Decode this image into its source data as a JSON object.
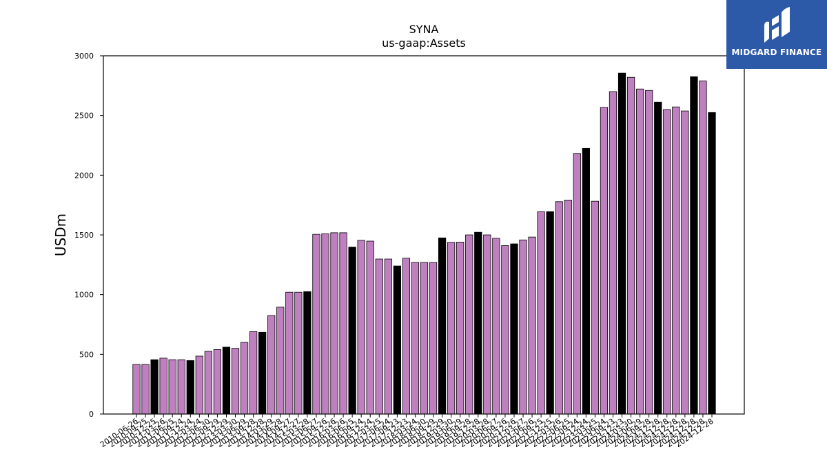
{
  "logo": {
    "text": "MIDGARD FINANCE",
    "background": "#2c5aa8"
  },
  "chart_data": {
    "type": "bar",
    "title": "SYNA",
    "subtitle": "us-gaap:Assets",
    "xlabel": "",
    "ylabel": "USDm",
    "ylim": [
      0,
      3000
    ],
    "yticks": [
      0,
      500,
      1000,
      1500,
      2000,
      2500,
      3000
    ],
    "grid": false,
    "colors": {
      "quarter": "#bf80bf",
      "fiscal_year_end": "#000000"
    },
    "categories": [
      "2010-06-26",
      "2010-09-25",
      "2010-12-25",
      "2011-03-26",
      "2011-06-25",
      "2011-09-24",
      "2011-12-24",
      "2012-03-24",
      "2012-06-30",
      "2012-09-29",
      "2012-12-29",
      "2013-03-30",
      "2013-06-29",
      "2013-09-28",
      "2013-12-28",
      "2014-03-29",
      "2014-06-28",
      "2014-09-27",
      "2014-12-27",
      "2015-03-28",
      "2015-06-27",
      "2015-09-26",
      "2015-12-26",
      "2016-03-26",
      "2016-06-25",
      "2016-09-24",
      "2016-12-24",
      "2017-03-25",
      "2017-06-24",
      "2017-09-23",
      "2017-12-23",
      "2018-03-24",
      "2018-06-30",
      "2018-09-29",
      "2018-12-29",
      "2019-03-30",
      "2019-06-29",
      "2019-09-28",
      "2019-12-28",
      "2020-03-28",
      "2020-06-27",
      "2020-09-26",
      "2020-12-26",
      "2021-03-27",
      "2021-06-26",
      "2021-09-25",
      "2021-12-25",
      "2022-03-26",
      "2022-06-25",
      "2022-09-24",
      "2022-12-24",
      "2023-03-25",
      "2023-06-24",
      "2023-09-23",
      "2023-12-23",
      "2024-03-30",
      "2024-06-29",
      "2024-09-28",
      "2024-12-28",
      "2024-12-28",
      "2024-12-28",
      "2024-12-28",
      "2024-12-28",
      "2024-12-28",
      "2024-12-28"
    ],
    "values": [
      415,
      415,
      455,
      468,
      455,
      455,
      448,
      485,
      525,
      540,
      560,
      550,
      600,
      690,
      685,
      825,
      895,
      1020,
      1020,
      1025,
      1505,
      1510,
      1518,
      1518,
      1398,
      1455,
      1448,
      1298,
      1298,
      1240,
      1305,
      1270,
      1270,
      1270,
      1475,
      1438,
      1440,
      1500,
      1522,
      1500,
      1472,
      1410,
      1425,
      1458,
      1482,
      1695,
      1695,
      1778,
      1792,
      2182,
      2225,
      1782,
      2568,
      2700,
      2855,
      2820,
      2722,
      2710,
      2612,
      2550,
      2572,
      2538,
      2825,
      2790,
      2525
    ],
    "fiscal_year_end": [
      false,
      false,
      true,
      false,
      false,
      false,
      true,
      false,
      false,
      false,
      true,
      false,
      false,
      false,
      true,
      false,
      false,
      false,
      false,
      true,
      false,
      false,
      false,
      false,
      true,
      false,
      false,
      false,
      false,
      true,
      false,
      false,
      false,
      false,
      true,
      false,
      false,
      false,
      true,
      false,
      false,
      false,
      true,
      false,
      false,
      false,
      true,
      false,
      false,
      false,
      true,
      false,
      false,
      false,
      true,
      false,
      false,
      false,
      true,
      false,
      false,
      false,
      true,
      false,
      true
    ]
  }
}
